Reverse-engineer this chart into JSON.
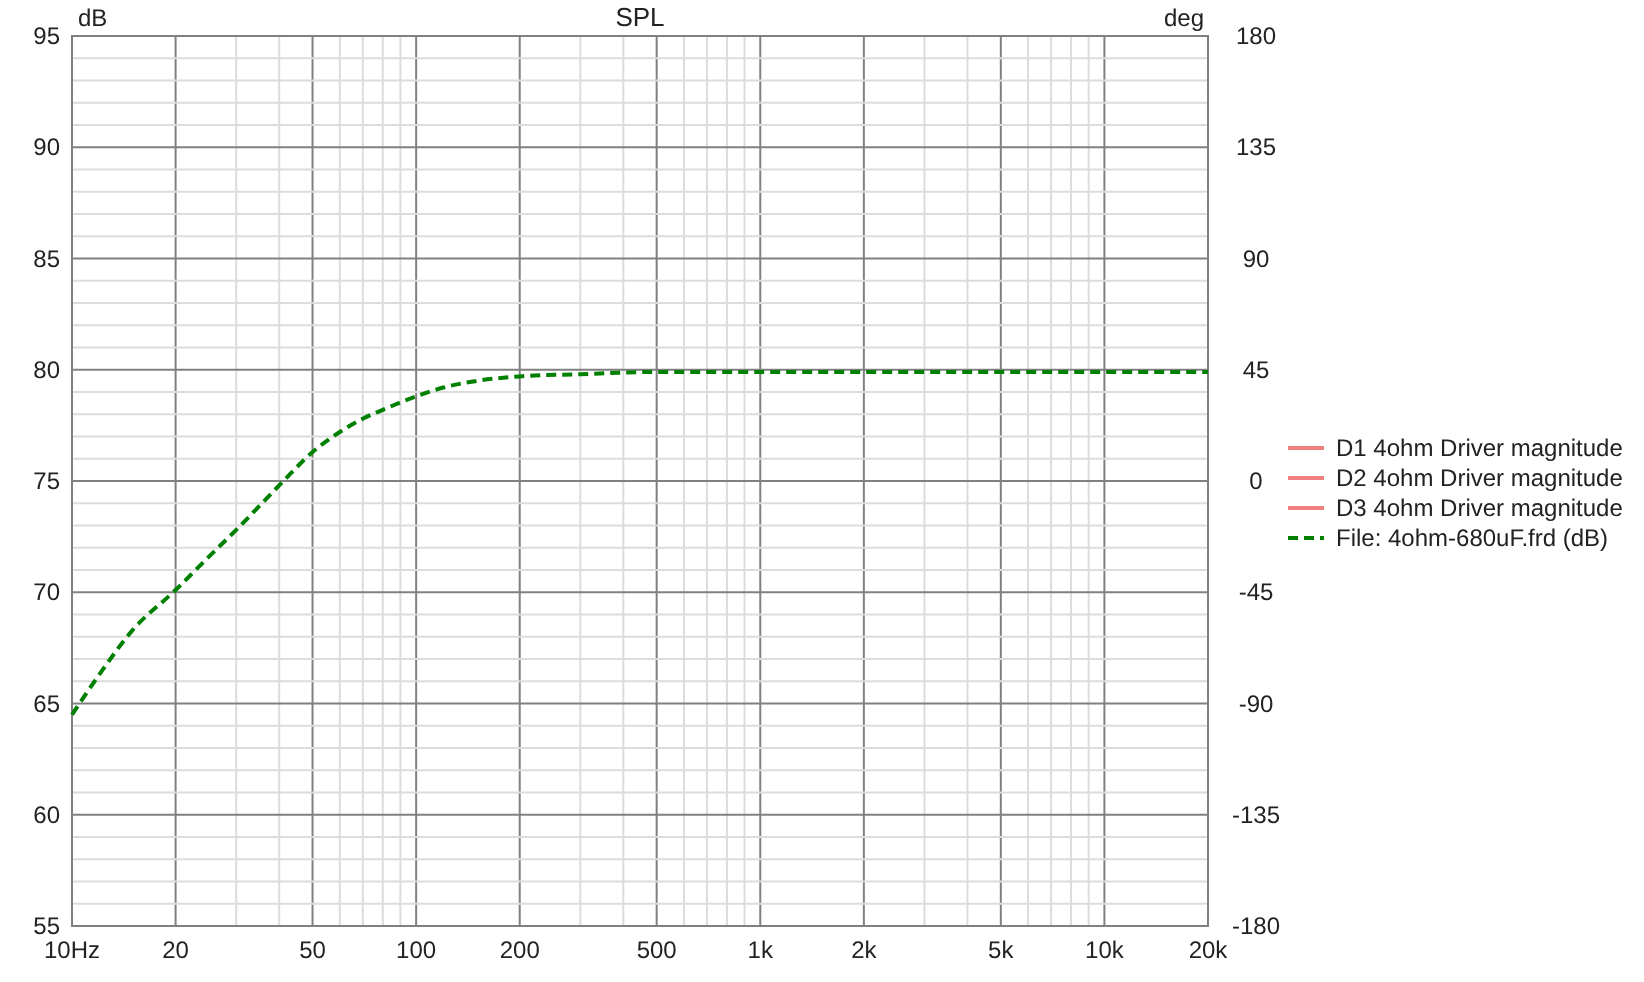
{
  "chart_data": {
    "type": "line",
    "title": "SPL",
    "ylabel": "dB",
    "y2label": "deg",
    "log": "x",
    "x": [
      10,
      12,
      15,
      20,
      25,
      30,
      40,
      50,
      60,
      70,
      80,
      100,
      120,
      150,
      200,
      300,
      500,
      700,
      1000,
      2000,
      5000,
      10000,
      20000
    ],
    "xlim": [
      10,
      20000
    ],
    "xticks": [
      {
        "value": 10,
        "label": "10Hz"
      },
      20,
      {
        "value": 30,
        "label": null
      },
      {
        "value": 40,
        "label": null
      },
      50,
      {
        "value": 60,
        "label": null
      },
      {
        "value": 70,
        "label": null
      },
      {
        "value": 80,
        "label": null
      },
      {
        "value": 90,
        "label": null
      },
      100,
      200,
      {
        "value": 300,
        "label": null
      },
      {
        "value": 400,
        "label": null
      },
      500,
      {
        "value": 600,
        "label": null
      },
      {
        "value": 700,
        "label": null
      },
      {
        "value": 800,
        "label": null
      },
      {
        "value": 900,
        "label": null
      },
      {
        "value": 1000,
        "label": "1k"
      },
      {
        "value": 2000,
        "label": "2k"
      },
      {
        "value": 3000,
        "label": null
      },
      {
        "value": 4000,
        "label": null
      },
      {
        "value": 5000,
        "label": "5k"
      },
      {
        "value": 6000,
        "label": null
      },
      {
        "value": 7000,
        "label": null
      },
      {
        "value": 8000,
        "label": null
      },
      {
        "value": 9000,
        "label": null
      },
      {
        "value": 10000,
        "label": "10k"
      },
      {
        "value": 20000,
        "label": "20k"
      }
    ],
    "ylim": [
      55,
      95
    ],
    "yticks": [
      55,
      {
        "value": 56,
        "label": null
      },
      {
        "value": 57,
        "label": null
      },
      {
        "value": 58,
        "label": null
      },
      {
        "value": 59,
        "label": null
      },
      60,
      {
        "value": 61,
        "label": null
      },
      {
        "value": 62,
        "label": null
      },
      {
        "value": 63,
        "label": null
      },
      {
        "value": 64,
        "label": null
      },
      65,
      {
        "value": 66,
        "label": null
      },
      {
        "value": 67,
        "label": null
      },
      {
        "value": 68,
        "label": null
      },
      {
        "value": 69,
        "label": null
      },
      70,
      {
        "value": 71,
        "label": null
      },
      {
        "value": 72,
        "label": null
      },
      {
        "value": 73,
        "label": null
      },
      {
        "value": 74,
        "label": null
      },
      75,
      {
        "value": 76,
        "label": null
      },
      {
        "value": 77,
        "label": null
      },
      {
        "value": 78,
        "label": null
      },
      {
        "value": 79,
        "label": null
      },
      80,
      {
        "value": 81,
        "label": null
      },
      {
        "value": 82,
        "label": null
      },
      {
        "value": 83,
        "label": null
      },
      {
        "value": 84,
        "label": null
      },
      85,
      {
        "value": 86,
        "label": null
      },
      {
        "value": 87,
        "label": null
      },
      {
        "value": 88,
        "label": null
      },
      {
        "value": 89,
        "label": null
      },
      90,
      {
        "value": 91,
        "label": null
      },
      {
        "value": 92,
        "label": null
      },
      {
        "value": 93,
        "label": null
      },
      {
        "value": 94,
        "label": null
      },
      95
    ],
    "y2lim": [
      -180,
      180
    ],
    "y2ticks": [
      -180,
      -135,
      -90,
      -45,
      0,
      45,
      90,
      135,
      180
    ],
    "grid": true,
    "legend": "right",
    "series": [
      {
        "name": "D1 4ohm Driver magnitude",
        "color": "#f08080",
        "line_style": "solid",
        "values": [
          null,
          null,
          null,
          null,
          null,
          null,
          null,
          null,
          null,
          null,
          null,
          null,
          null,
          null,
          null,
          null,
          null,
          null,
          null,
          null,
          null,
          null,
          null
        ]
      },
      {
        "name": "D2 4ohm Driver magnitude",
        "color": "#f08080",
        "line_style": "solid",
        "values": [
          null,
          null,
          null,
          null,
          null,
          null,
          null,
          null,
          null,
          null,
          null,
          null,
          null,
          null,
          null,
          null,
          null,
          null,
          null,
          null,
          null,
          null,
          null
        ]
      },
      {
        "name": "D3 4ohm Driver magnitude",
        "color": "#f08080",
        "line_style": "solid",
        "values": [
          null,
          null,
          null,
          null,
          null,
          null,
          null,
          null,
          null,
          null,
          null,
          null,
          null,
          null,
          null,
          null,
          null,
          null,
          null,
          null,
          null,
          null,
          null
        ]
      },
      {
        "name": "File: 4ohm-680uF.frd (dB)",
        "color": "#008000",
        "line_style": "dashed",
        "values": [
          64.5,
          66.3,
          68.3,
          70.1,
          71.6,
          72.8,
          74.8,
          76.3,
          77.2,
          77.8,
          78.2,
          78.8,
          79.2,
          79.5,
          79.7,
          79.8,
          79.9,
          79.9,
          79.9,
          79.9,
          79.9,
          79.9,
          79.9
        ]
      }
    ]
  }
}
